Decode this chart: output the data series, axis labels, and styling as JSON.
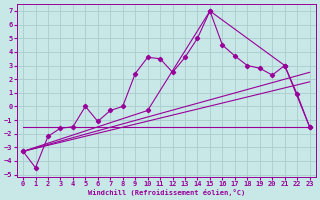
{
  "xlabel": "Windchill (Refroidissement éolien,°C)",
  "bg_color": "#c8e8e8",
  "grid_color": "#aacccc",
  "line_color": "#990099",
  "xlim": [
    -0.5,
    23.5
  ],
  "ylim": [
    -5.2,
    7.5
  ],
  "xticks": [
    0,
    1,
    2,
    3,
    4,
    5,
    6,
    7,
    8,
    9,
    10,
    11,
    12,
    13,
    14,
    15,
    16,
    17,
    18,
    19,
    20,
    21,
    22,
    23
  ],
  "yticks": [
    -5,
    -4,
    -3,
    -2,
    -1,
    0,
    1,
    2,
    3,
    4,
    5,
    6,
    7
  ],
  "series1_x": [
    0,
    1,
    2,
    3,
    4,
    5,
    6,
    7,
    8,
    9,
    10,
    11,
    12,
    13,
    14,
    15,
    16,
    17,
    18,
    19,
    20,
    21,
    22,
    23
  ],
  "series1_y": [
    -3.3,
    -4.5,
    -2.2,
    -1.6,
    -1.5,
    0.0,
    -1.1,
    -0.3,
    0.0,
    2.4,
    3.6,
    3.5,
    2.5,
    3.6,
    5.0,
    7.0,
    4.5,
    3.7,
    3.0,
    2.8,
    2.3,
    3.0,
    0.9,
    -1.5
  ],
  "series2_x": [
    0,
    23
  ],
  "series2_y": [
    -1.5,
    -1.5
  ],
  "series3_x": [
    0,
    23
  ],
  "series3_y": [
    -3.3,
    2.5
  ],
  "series4_x": [
    0,
    23
  ],
  "series4_y": [
    -3.3,
    1.8
  ],
  "series5_x": [
    0,
    10,
    15,
    21,
    23
  ],
  "series5_y": [
    -3.3,
    -0.3,
    7.0,
    3.0,
    -1.5
  ]
}
